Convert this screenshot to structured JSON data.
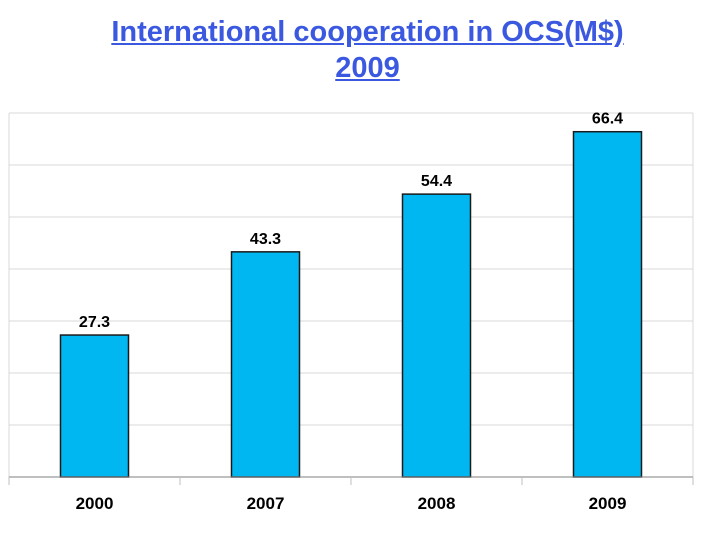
{
  "title": {
    "line1": "International cooperation in OCS(M$)",
    "line2": "2009"
  },
  "colors": {
    "title": "#3b58e0",
    "bar_fill": "#00b7f2",
    "bar_stroke": "#1a1a1a",
    "grid": "#d8d8d8"
  },
  "chart_data": {
    "type": "bar",
    "title": "International cooperation in OCS(M$) 2009",
    "categories": [
      "2000",
      "2007",
      "2008",
      "2009"
    ],
    "values": [
      27.3,
      43.3,
      54.4,
      66.4
    ],
    "value_labels": [
      "27.3",
      "43.3",
      "54.4",
      "66.4"
    ],
    "xlabel": "",
    "ylabel": "",
    "ylim": [
      0,
      70
    ],
    "grid": true,
    "legend": "none"
  }
}
